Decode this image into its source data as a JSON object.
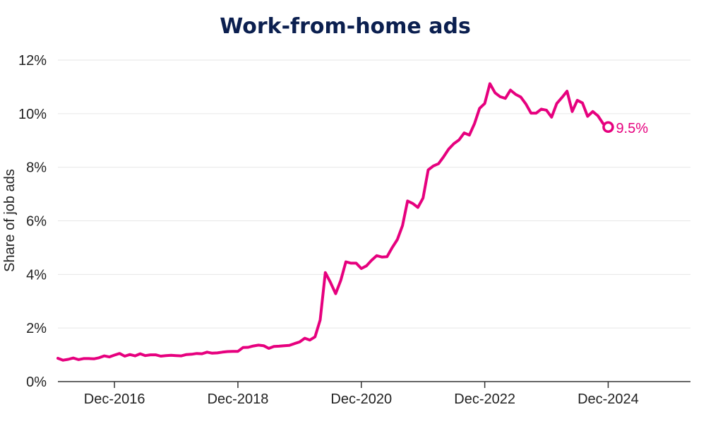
{
  "chart_data": {
    "type": "line",
    "title": "Work-from-home ads",
    "ylabel": "Share of job ads",
    "xlabel": "",
    "ylim": [
      0,
      12
    ],
    "yticks": [
      0,
      2,
      4,
      6,
      8,
      10,
      12
    ],
    "ytick_labels": [
      "0%",
      "2%",
      "4%",
      "6%",
      "8%",
      "10%",
      "12%"
    ],
    "xlim": [
      "2016-01",
      "2026-04"
    ],
    "xticks": [
      "2016-12",
      "2018-12",
      "2020-12",
      "2022-12",
      "2024-12"
    ],
    "xtick_labels": [
      "Dec-2016",
      "Dec-2018",
      "Dec-2020",
      "Dec-2022",
      "Dec-2024"
    ],
    "grid": true,
    "color": "#e6007e",
    "end_label": "9.5%",
    "series": [
      {
        "x": [
          "2016-01",
          "2016-02",
          "2016-03",
          "2016-04",
          "2016-05",
          "2016-06",
          "2016-07",
          "2016-08",
          "2016-09",
          "2016-10",
          "2016-11",
          "2016-12",
          "2017-01",
          "2017-02",
          "2017-03",
          "2017-04",
          "2017-05",
          "2017-06",
          "2017-07",
          "2017-08",
          "2017-09",
          "2017-10",
          "2017-11",
          "2017-12",
          "2018-01",
          "2018-02",
          "2018-03",
          "2018-04",
          "2018-05",
          "2018-06",
          "2018-07",
          "2018-08",
          "2018-09",
          "2018-10",
          "2018-11",
          "2018-12",
          "2019-01",
          "2019-02",
          "2019-03",
          "2019-04",
          "2019-05",
          "2019-06",
          "2019-07",
          "2019-08",
          "2019-09",
          "2019-10",
          "2019-11",
          "2019-12",
          "2020-01",
          "2020-02",
          "2020-03",
          "2020-04",
          "2020-05",
          "2020-06",
          "2020-07",
          "2020-08",
          "2020-09",
          "2020-10",
          "2020-11",
          "2020-12",
          "2021-01",
          "2021-02",
          "2021-03",
          "2021-04",
          "2021-05",
          "2021-06",
          "2021-07",
          "2021-08",
          "2021-09",
          "2021-10",
          "2021-11",
          "2021-12",
          "2022-01",
          "2022-02",
          "2022-03",
          "2022-04",
          "2022-05",
          "2022-06",
          "2022-07",
          "2022-08",
          "2022-09",
          "2022-10",
          "2022-11",
          "2022-12",
          "2023-01",
          "2023-02",
          "2023-03",
          "2023-04",
          "2023-05",
          "2023-06",
          "2023-07",
          "2023-08",
          "2023-09",
          "2023-10",
          "2023-11",
          "2023-12",
          "2024-01",
          "2024-02",
          "2024-03",
          "2024-04",
          "2024-05",
          "2024-06",
          "2024-07",
          "2024-08",
          "2024-09",
          "2024-10",
          "2024-11",
          "2024-12"
        ],
        "y": [
          0.87,
          0.8,
          0.83,
          0.88,
          0.82,
          0.86,
          0.86,
          0.85,
          0.89,
          0.96,
          0.92,
          0.99,
          1.05,
          0.95,
          1.01,
          0.96,
          1.04,
          0.97,
          1.0,
          1.0,
          0.95,
          0.97,
          0.98,
          0.97,
          0.96,
          1.01,
          1.02,
          1.05,
          1.04,
          1.1,
          1.06,
          1.07,
          1.1,
          1.12,
          1.13,
          1.13,
          1.27,
          1.28,
          1.33,
          1.36,
          1.34,
          1.24,
          1.31,
          1.32,
          1.34,
          1.35,
          1.42,
          1.48,
          1.62,
          1.55,
          1.67,
          2.3,
          4.07,
          3.7,
          3.28,
          3.78,
          4.47,
          4.42,
          4.42,
          4.22,
          4.32,
          4.53,
          4.7,
          4.65,
          4.66,
          5.0,
          5.3,
          5.82,
          6.74,
          6.65,
          6.5,
          6.85,
          7.9,
          8.05,
          8.13,
          8.39,
          8.68,
          8.88,
          9.02,
          9.28,
          9.2,
          9.62,
          10.2,
          10.38,
          11.12,
          10.78,
          10.63,
          10.57,
          10.88,
          10.72,
          10.62,
          10.36,
          10.02,
          10.02,
          10.17,
          10.13,
          9.87,
          10.38,
          10.6,
          10.84,
          10.08,
          10.5,
          10.4,
          9.9,
          10.08,
          9.92,
          9.63,
          9.5
        ]
      }
    ]
  }
}
